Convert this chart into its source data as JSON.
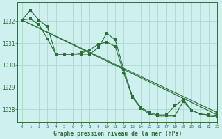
{
  "title": "Graphe pression niveau de la mer (hPa)",
  "bg_color": "#cef0ee",
  "grid_color": "#b0d8cc",
  "line_color": "#2d6e3a",
  "xlim": [
    -0.5,
    23
  ],
  "ylim": [
    1027.4,
    1032.85
  ],
  "yticks": [
    1028,
    1029,
    1030,
    1031,
    1032
  ],
  "xticks": [
    0,
    1,
    2,
    3,
    4,
    5,
    6,
    7,
    8,
    9,
    10,
    11,
    12,
    13,
    14,
    15,
    16,
    17,
    18,
    19,
    20,
    21,
    22,
    23
  ],
  "trend1_x": [
    0,
    23
  ],
  "trend1_y": [
    1032.05,
    1027.75
  ],
  "trend2_x": [
    0,
    23
  ],
  "trend2_y": [
    1032.05,
    1027.85
  ],
  "series_zigzag_x": [
    0,
    1,
    2,
    3,
    4,
    5,
    6,
    7,
    8,
    9,
    10,
    11,
    12,
    13,
    14,
    15,
    16,
    17,
    18,
    19,
    20,
    21,
    22,
    23
  ],
  "series_zigzag": [
    1032.05,
    1032.5,
    1032.05,
    1031.75,
    1030.5,
    1030.5,
    1030.5,
    1030.5,
    1030.5,
    1030.8,
    1031.45,
    1031.15,
    1029.8,
    1028.6,
    1028.1,
    1027.85,
    1027.75,
    1027.75,
    1028.15,
    1028.45,
    1027.95,
    1027.8,
    1027.75,
    1027.7
  ],
  "series_smooth_x": [
    0,
    1,
    2,
    3,
    4,
    5,
    6,
    7,
    8,
    9,
    10,
    11,
    12,
    13,
    14,
    15,
    16,
    17,
    18,
    19,
    20,
    21,
    22,
    23
  ],
  "series_smooth": [
    1032.05,
    1032.1,
    1031.85,
    1031.2,
    1030.5,
    1030.5,
    1030.5,
    1030.55,
    1030.7,
    1030.95,
    1031.05,
    1030.85,
    1029.65,
    1028.55,
    1028.05,
    1027.8,
    1027.7,
    1027.7,
    1027.7,
    1028.35,
    1027.95,
    1027.8,
    1027.7,
    1027.65
  ]
}
